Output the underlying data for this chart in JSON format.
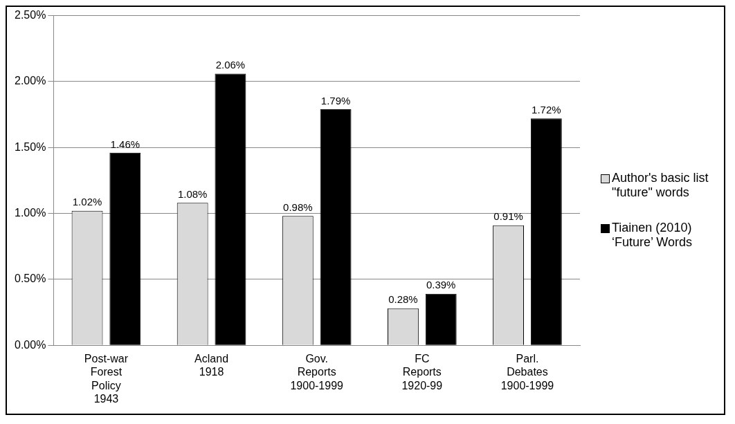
{
  "chart_data": {
    "type": "bar",
    "categories": [
      "Post-war Forest Policy 1943",
      "Acland 1918",
      "Gov. Reports 1900-1999",
      "FC Reports 1920-99",
      "Parl. Debates 1900-1999"
    ],
    "series": [
      {
        "name": "Author's basic list \"future\" words",
        "color": "#d9d9d9",
        "values": [
          1.02,
          1.08,
          0.98,
          0.28,
          0.91
        ],
        "value_labels": [
          "1.02%",
          "1.08%",
          "0.98%",
          "0.28%",
          "0.91%"
        ]
      },
      {
        "name": "Tiainen (2010) ‘Future’ Words",
        "color": "#000000",
        "values": [
          1.46,
          2.06,
          1.79,
          0.39,
          1.72
        ],
        "value_labels": [
          "1.46%",
          "2.06%",
          "1.79%",
          "0.39%",
          "1.72%"
        ]
      }
    ],
    "ylim": [
      0,
      2.5
    ],
    "yticks": [
      {
        "value": 0,
        "label": "0.00%"
      },
      {
        "value": 0.5,
        "label": "0.50%"
      },
      {
        "value": 1,
        "label": "1.00%"
      },
      {
        "value": 1.5,
        "label": "1.50%"
      },
      {
        "value": 2,
        "label": "2.00%"
      },
      {
        "value": 2.5,
        "label": "2.50%"
      }
    ],
    "grid": "y",
    "legend": "right"
  }
}
